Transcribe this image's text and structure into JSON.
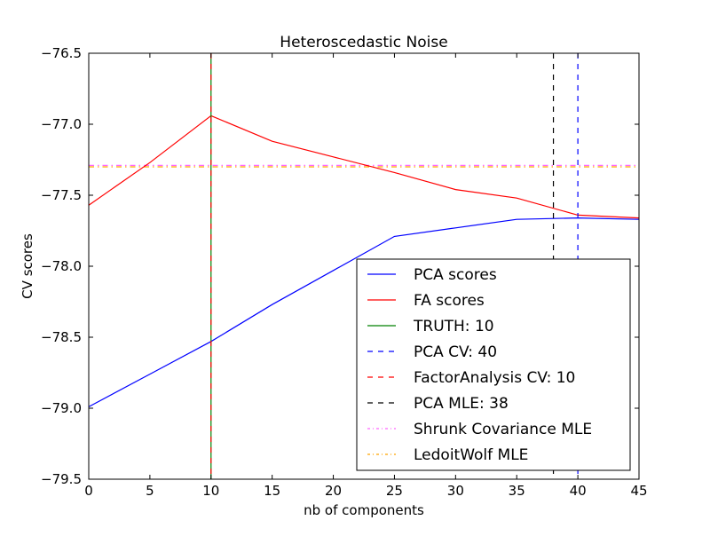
{
  "chart_data": {
    "type": "line",
    "title": "Heteroscedastic Noise",
    "xlabel": "nb of components",
    "ylabel": "CV scores",
    "xlim": [
      0,
      45
    ],
    "ylim": [
      -79.5,
      -76.5
    ],
    "xticks": [
      0,
      5,
      10,
      15,
      20,
      25,
      30,
      35,
      40,
      45
    ],
    "xtick_labels": [
      "0",
      "5",
      "10",
      "15",
      "20",
      "25",
      "30",
      "35",
      "40",
      "45"
    ],
    "yticks": [
      -76.5,
      -77.0,
      -77.5,
      -78.0,
      -78.5,
      -79.0,
      -79.5
    ],
    "ytick_labels": [
      "−76.5",
      "−77.0",
      "−77.5",
      "−78.0",
      "−78.5",
      "−79.0",
      "−79.5"
    ],
    "grid": false,
    "legend_position": "lower-right",
    "x": [
      0,
      5,
      10,
      15,
      20,
      25,
      30,
      35,
      40,
      45
    ],
    "series": [
      {
        "name": "PCA scores",
        "color": "#0000ff",
        "style": "solid",
        "values": [
          -78.99,
          -78.76,
          -78.53,
          -78.27,
          -78.03,
          -77.79,
          -77.73,
          -77.67,
          -77.66,
          -77.67
        ]
      },
      {
        "name": "FA scores",
        "color": "#ff0000",
        "style": "solid",
        "values": [
          -77.57,
          -77.27,
          -76.94,
          -77.12,
          -77.23,
          -77.34,
          -77.46,
          -77.52,
          -77.64,
          -77.66
        ]
      }
    ],
    "vlines": [
      {
        "name": "TRUTH: 10",
        "x": 10,
        "color": "#008000",
        "style": "solid"
      },
      {
        "name": "PCA CV: 40",
        "x": 40,
        "color": "#0000ff",
        "style": "dashed"
      },
      {
        "name": "FactorAnalysis CV: 10",
        "x": 10,
        "color": "#ff0000",
        "style": "dashed"
      },
      {
        "name": "PCA MLE: 38",
        "x": 38,
        "color": "#000000",
        "style": "dashed"
      }
    ],
    "hlines": [
      {
        "name": "Shrunk Covariance MLE",
        "y": -77.29,
        "color": "#ff66ff",
        "style": "dashdot"
      },
      {
        "name": "LedoitWolf MLE",
        "y": -77.3,
        "color": "#ffa500",
        "style": "dashdot"
      }
    ],
    "legend": [
      "PCA scores",
      "FA scores",
      "TRUTH: 10",
      "PCA CV: 40",
      "FactorAnalysis CV: 10",
      "PCA MLE: 38",
      "Shrunk Covariance MLE",
      "LedoitWolf MLE"
    ]
  }
}
